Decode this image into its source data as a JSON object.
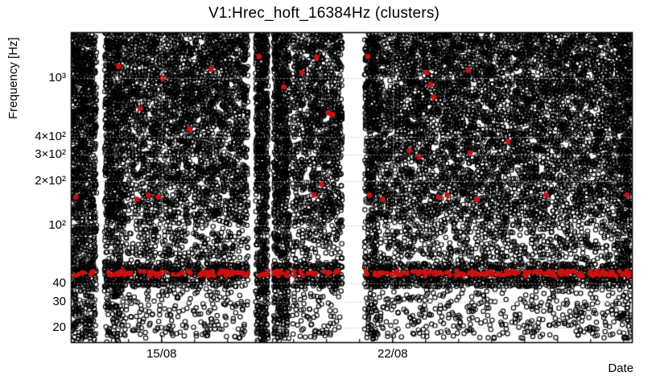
{
  "figure": {
    "title": "V1:Hrec_hoft_16384Hz (clusters)",
    "xlabel": "Date",
    "ylabel": "Frequency [Hz]"
  },
  "chart_data": {
    "type": "scatter",
    "title": "V1:Hrec_hoft_16384Hz (clusters)",
    "xlabel": "Date",
    "ylabel": "Frequency [Hz]",
    "legend": "none",
    "grid": "dotted",
    "x_axis": {
      "unit": "days-from-plot-start",
      "min": 0,
      "max": 17,
      "ticks": [
        {
          "day": 2.75,
          "label": "15/08"
        },
        {
          "day": 9.75,
          "label": "22/08"
        }
      ],
      "minor_tick_start": 0.75,
      "minor_tick_step": 1
    },
    "y_axis": {
      "scale": "log",
      "min": 16,
      "max": 2048,
      "ticks": [
        {
          "f": 1000,
          "label": "10³"
        },
        {
          "f": 400,
          "label": "4×10²"
        },
        {
          "f": 300,
          "label": "3×10²"
        },
        {
          "f": 200,
          "label": "2×10²"
        },
        {
          "f": 100,
          "label": "10²"
        },
        {
          "f": 40,
          "label": "40"
        },
        {
          "f": 30,
          "label": "30"
        },
        {
          "f": 20,
          "label": "20"
        }
      ],
      "minor_ticks": [
        50,
        60,
        70,
        80,
        90,
        500,
        600,
        700,
        800,
        900,
        2000
      ]
    },
    "colors": {
      "background": "#ffffff",
      "cluster": "#000000",
      "loud_cluster": "#cc1111",
      "grid": "#b9b9b9",
      "axis": "#000000"
    },
    "gaps_days": [
      [
        0.78,
        1.02
      ],
      [
        5.37,
        5.6
      ],
      [
        5.98,
        6.14
      ],
      [
        6.63,
        6.72
      ],
      [
        8.22,
        8.9
      ]
    ],
    "series": [
      {
        "name": "clusters",
        "marker": "open-circle",
        "color": "#000000",
        "bands": [
          {
            "f_min": 95,
            "f_max": 2048,
            "count": 13000,
            "bias_high": 0.85
          },
          {
            "f_min": 60,
            "f_max": 95,
            "count": 1000
          },
          {
            "f_min": 55,
            "f_max": 60,
            "count": 130
          },
          {
            "f_min": 38,
            "f_max": 55,
            "count": 2100
          },
          {
            "f_min": 17,
            "f_max": 37,
            "count": 900
          }
        ],
        "dense_columns": [
          {
            "day0": 0.0,
            "day1": 0.75,
            "count": 520
          },
          {
            "day0": 1.05,
            "day1": 1.55,
            "count": 340
          },
          {
            "day0": 5.6,
            "day1": 5.97,
            "count": 430
          },
          {
            "day0": 6.15,
            "day1": 6.62,
            "count": 430
          },
          {
            "day0": 9.0,
            "day1": 9.3,
            "count": 200
          },
          {
            "day0": 16.6,
            "day1": 17.0,
            "count": 260
          }
        ]
      },
      {
        "name": "loud-clusters",
        "marker": "filled-circle",
        "color": "#cc1111",
        "band": {
          "f_center": 47,
          "log10_halfwidth": 0.018,
          "count": 300
        },
        "points": [
          [
            0.15,
            155
          ],
          [
            1.45,
            1200
          ],
          [
            2.0,
            150
          ],
          [
            2.1,
            620
          ],
          [
            2.35,
            160
          ],
          [
            2.65,
            155
          ],
          [
            2.78,
            1000
          ],
          [
            3.6,
            450
          ],
          [
            4.25,
            1150
          ],
          [
            5.7,
            1400
          ],
          [
            6.45,
            870
          ],
          [
            7.0,
            1090
          ],
          [
            7.37,
            160
          ],
          [
            7.45,
            1380
          ],
          [
            7.6,
            190
          ],
          [
            7.8,
            580
          ],
          [
            7.93,
            565
          ],
          [
            9.0,
            1400
          ],
          [
            9.05,
            160
          ],
          [
            9.45,
            150
          ],
          [
            10.25,
            320
          ],
          [
            10.55,
            290
          ],
          [
            10.78,
            1090
          ],
          [
            10.9,
            900
          ],
          [
            11.0,
            740
          ],
          [
            11.15,
            155
          ],
          [
            11.4,
            160
          ],
          [
            12.05,
            1130
          ],
          [
            12.1,
            310
          ],
          [
            12.3,
            150
          ],
          [
            13.25,
            370
          ],
          [
            14.4,
            160
          ],
          [
            16.85,
            160
          ]
        ]
      }
    ]
  }
}
